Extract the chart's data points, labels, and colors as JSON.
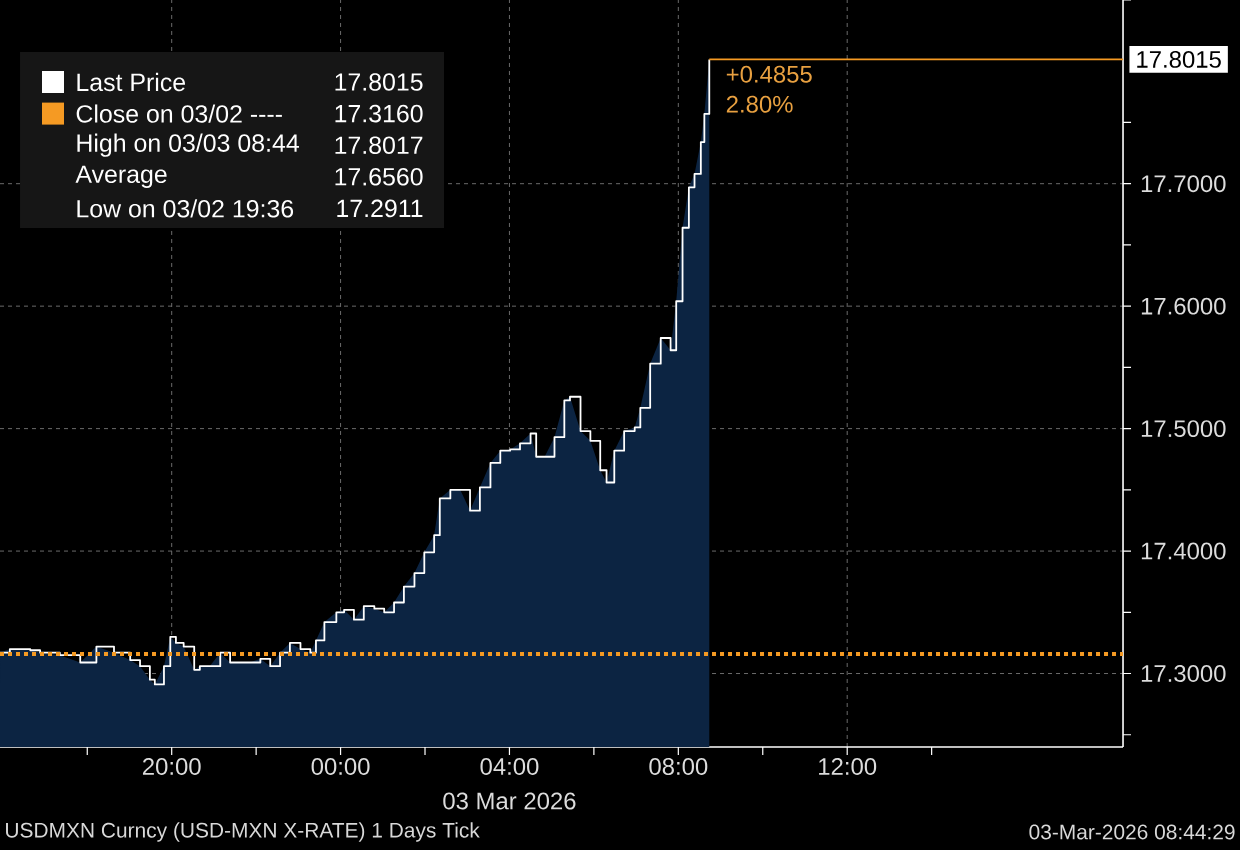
{
  "chart_data": {
    "type": "area",
    "xlabel": "03 Mar 2026",
    "x": [
      "2026-03-02T15:56",
      "2026-03-02T16:10",
      "2026-03-02T16:39",
      "2026-03-02T16:53",
      "2026-03-02T17:21",
      "2026-03-02T17:50",
      "2026-03-02T18:13",
      "2026-03-02T18:38",
      "2026-03-02T19:01",
      "2026-03-02T19:15",
      "2026-03-02T19:29",
      "2026-03-02T19:36",
      "2026-03-02T19:49",
      "2026-03-02T19:58",
      "2026-03-02T20:06",
      "2026-03-02T20:17",
      "2026-03-02T20:32",
      "2026-03-02T20:40",
      "2026-03-02T20:54",
      "2026-03-02T21:09",
      "2026-03-02T21:23",
      "2026-03-02T21:37",
      "2026-03-02T21:51",
      "2026-03-02T22:06",
      "2026-03-02T22:20",
      "2026-03-02T22:34",
      "2026-03-02T22:48",
      "2026-03-02T23:03",
      "2026-03-02T23:17",
      "2026-03-02T23:25",
      "2026-03-02T23:37",
      "2026-03-02T23:54",
      "2026-03-03T00:05",
      "2026-03-03T00:19",
      "2026-03-03T00:33",
      "2026-03-03T00:48",
      "2026-03-03T01:02",
      "2026-03-03T01:16",
      "2026-03-03T01:30",
      "2026-03-03T01:45",
      "2026-03-03T01:59",
      "2026-03-03T02:13",
      "2026-03-03T02:21",
      "2026-03-03T02:36",
      "2026-03-03T02:50",
      "2026-03-03T03:04",
      "2026-03-03T03:18",
      "2026-03-03T03:33",
      "2026-03-03T03:47",
      "2026-03-03T04:01",
      "2026-03-03T04:15",
      "2026-03-03T04:30",
      "2026-03-03T04:38",
      "2026-03-03T04:50",
      "2026-03-03T05:04",
      "2026-03-03T05:18",
      "2026-03-03T05:26",
      "2026-03-03T05:41",
      "2026-03-03T05:55",
      "2026-03-03T06:09",
      "2026-03-03T06:18",
      "2026-03-03T06:29",
      "2026-03-03T06:43",
      "2026-03-03T06:58",
      "2026-03-03T07:06",
      "2026-03-03T07:20",
      "2026-03-03T07:35",
      "2026-03-03T07:49",
      "2026-03-03T07:57",
      "2026-03-03T08:06",
      "2026-03-03T08:15",
      "2026-03-03T08:23",
      "2026-03-03T08:32",
      "2026-03-03T08:37",
      "2026-03-03T08:44"
    ],
    "xlim": [
      "2026-03-02T15:56",
      "2026-03-03T18:32"
    ],
    "xticks": [
      {
        "value": "2026-03-02T18:00",
        "label": null
      },
      {
        "value": "2026-03-02T20:00",
        "label": "20:00"
      },
      {
        "value": "2026-03-02T22:00",
        "label": null
      },
      {
        "value": "2026-03-03T00:00",
        "label": "00:00"
      },
      {
        "value": "2026-03-03T02:00",
        "label": null
      },
      {
        "value": "2026-03-03T04:00",
        "label": "04:00"
      },
      {
        "value": "2026-03-03T06:00",
        "label": null
      },
      {
        "value": "2026-03-03T08:00",
        "label": "08:00"
      },
      {
        "value": "2026-03-03T10:00",
        "label": null
      },
      {
        "value": "2026-03-03T12:00",
        "label": "12:00"
      },
      {
        "value": "2026-03-03T14:00",
        "label": null
      }
    ],
    "ylim": [
      17.24,
      17.85
    ],
    "yticks": [
      {
        "value": 17.25,
        "label": null
      },
      {
        "value": 17.3,
        "label": "17.3000"
      },
      {
        "value": 17.35,
        "label": null
      },
      {
        "value": 17.4,
        "label": "17.4000"
      },
      {
        "value": 17.45,
        "label": null
      },
      {
        "value": 17.5,
        "label": "17.5000"
      },
      {
        "value": 17.55,
        "label": null
      },
      {
        "value": 17.6,
        "label": "17.6000"
      },
      {
        "value": 17.65,
        "label": null
      },
      {
        "value": 17.7,
        "label": "17.7000"
      },
      {
        "value": 17.75,
        "label": null
      },
      {
        "value": 17.85,
        "label": null
      }
    ],
    "series": [
      {
        "color": "#0c2442",
        "values": [
          17.317,
          17.32,
          17.319,
          17.317,
          17.315,
          17.309,
          17.322,
          17.317,
          17.311,
          17.306,
          17.295,
          17.2911,
          17.306,
          17.33,
          17.325,
          17.322,
          17.303,
          17.306,
          17.306,
          17.317,
          17.309,
          17.309,
          17.309,
          17.312,
          17.306,
          17.317,
          17.325,
          17.32,
          17.317,
          17.327,
          17.342,
          17.35,
          17.352,
          17.344,
          17.355,
          17.353,
          17.35,
          17.358,
          17.371,
          17.382,
          17.399,
          17.413,
          17.443,
          17.45,
          17.45,
          17.433,
          17.452,
          17.472,
          17.482,
          17.483,
          17.488,
          17.496,
          17.477,
          17.477,
          17.493,
          17.523,
          17.526,
          17.498,
          17.49,
          17.466,
          17.456,
          17.482,
          17.498,
          17.501,
          17.517,
          17.553,
          17.574,
          17.564,
          17.604,
          17.664,
          17.697,
          17.708,
          17.734,
          17.757,
          17.8015
        ]
      },
      {
        "type": "step",
        "name": "Last Price",
        "color": "#ffffff",
        "values": [
          17.317,
          17.32,
          17.319,
          17.317,
          17.315,
          17.309,
          17.322,
          17.317,
          17.311,
          17.306,
          17.295,
          17.2911,
          17.306,
          17.33,
          17.325,
          17.322,
          17.303,
          17.306,
          17.306,
          17.317,
          17.309,
          17.309,
          17.309,
          17.312,
          17.306,
          17.317,
          17.325,
          17.32,
          17.317,
          17.327,
          17.342,
          17.35,
          17.352,
          17.344,
          17.355,
          17.353,
          17.35,
          17.358,
          17.371,
          17.382,
          17.399,
          17.413,
          17.443,
          17.45,
          17.45,
          17.433,
          17.452,
          17.472,
          17.482,
          17.483,
          17.488,
          17.496,
          17.477,
          17.477,
          17.493,
          17.523,
          17.526,
          17.498,
          17.49,
          17.466,
          17.456,
          17.482,
          17.498,
          17.501,
          17.517,
          17.553,
          17.574,
          17.564,
          17.604,
          17.664,
          17.697,
          17.708,
          17.734,
          17.757,
          17.8015
        ]
      }
    ],
    "ref_lines": [
      {
        "axis": "y",
        "value": 17.316,
        "label": "Close on 03/02 ----",
        "color": "#f59a23",
        "line_style": "dotted"
      },
      {
        "axis": "y",
        "value": 17.8015,
        "label": "17.8015",
        "color": "#f59a23"
      }
    ],
    "annotations": [
      "17.8015",
      "17.3160",
      "High on 03/03 08:44",
      "17.8017",
      "Average",
      "17.6560",
      "Low on 03/02 19:36",
      "17.2911",
      "+0.4855",
      "2.80%",
      "USDMXN Curncy (USD-MXN X-RATE) 1 Days Tick",
      "03-Mar-2026 08:44:29"
    ],
    "grid": true,
    "legend": "top left"
  }
}
